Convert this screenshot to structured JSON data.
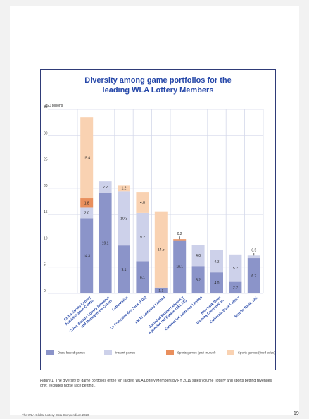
{
  "chart_data": {
    "type": "bar",
    "stacked": true,
    "title_line1": "Diversity among game portfolios for the",
    "title_line2": "leading WLA Lottery Members",
    "ylabel": "USD billions",
    "ylim": [
      0,
      35
    ],
    "yticks": [
      "0",
      "5",
      "10",
      "15",
      "20",
      "25",
      "30",
      "35"
    ],
    "grid": true,
    "legend_position": "bottom",
    "categories": [
      "China Sports Lottery Administration Centre",
      "China Welfare Lottery Issuance and Management Centre",
      "LottoMatica",
      "La Française des Jeux (FDJ)",
      "HKJC Lotteries Limited",
      "Sociedad Estatal Loterías y Apuestas del Estado (SELAE)",
      "Camelot UK Lotteries Limited",
      "New York State Gaming Commission",
      "California State Lottery",
      "Mizuho Bank, Ltd."
    ],
    "series": [
      {
        "name": "Draw-based games",
        "color": "#8b94c9",
        "values": [
          14.3,
          19.1,
          9.1,
          6.1,
          1.1,
          10.1,
          5.2,
          4.0,
          2.2,
          6.7
        ]
      },
      {
        "name": "Instant games",
        "color": "#cdd1ea",
        "values": [
          2.0,
          2.2,
          10.3,
          9.2,
          0,
          0,
          4.0,
          4.2,
          5.2,
          0.5
        ]
      },
      {
        "name": "Sports games (pari-mutuel)",
        "color": "#e98f5d",
        "values": [
          1.8,
          0,
          0,
          0,
          0,
          0.2,
          0,
          0,
          0,
          0
        ]
      },
      {
        "name": "Sports games (fixed-odds)",
        "color": "#f9d2b2",
        "values": [
          15.4,
          0,
          1.2,
          4.0,
          14.5,
          0,
          0,
          0,
          0,
          0
        ]
      }
    ],
    "labels_shown": [
      [
        "14.3",
        "2.0",
        "1.8",
        "15.4"
      ],
      [
        "19.1",
        "2.2",
        "",
        ""
      ],
      [
        "9.1",
        "10.3",
        "",
        "1.2"
      ],
      [
        "6.1",
        "9.2",
        "",
        "4.0"
      ],
      [
        "1.1",
        "",
        "",
        "14.5"
      ],
      [
        "10.1",
        "",
        "0.2",
        ""
      ],
      [
        "5.2",
        "4.0",
        "",
        ""
      ],
      [
        "4.0",
        "4.2",
        "",
        ""
      ],
      [
        "2.2",
        "5.2",
        "",
        ""
      ],
      [
        "6.7",
        "0.5",
        "",
        ""
      ]
    ]
  },
  "caption": {
    "label": "Figure 1.",
    "text": " The diversity of game portfolios of the ten largest WLA Lottery Members by FY 2019 sales volume (lottery and sports betting revenues only, excludes horse race betting)."
  },
  "footer": {
    "source": "The WLA Global Lottery Data Compendium 2020",
    "page_number": "19"
  }
}
